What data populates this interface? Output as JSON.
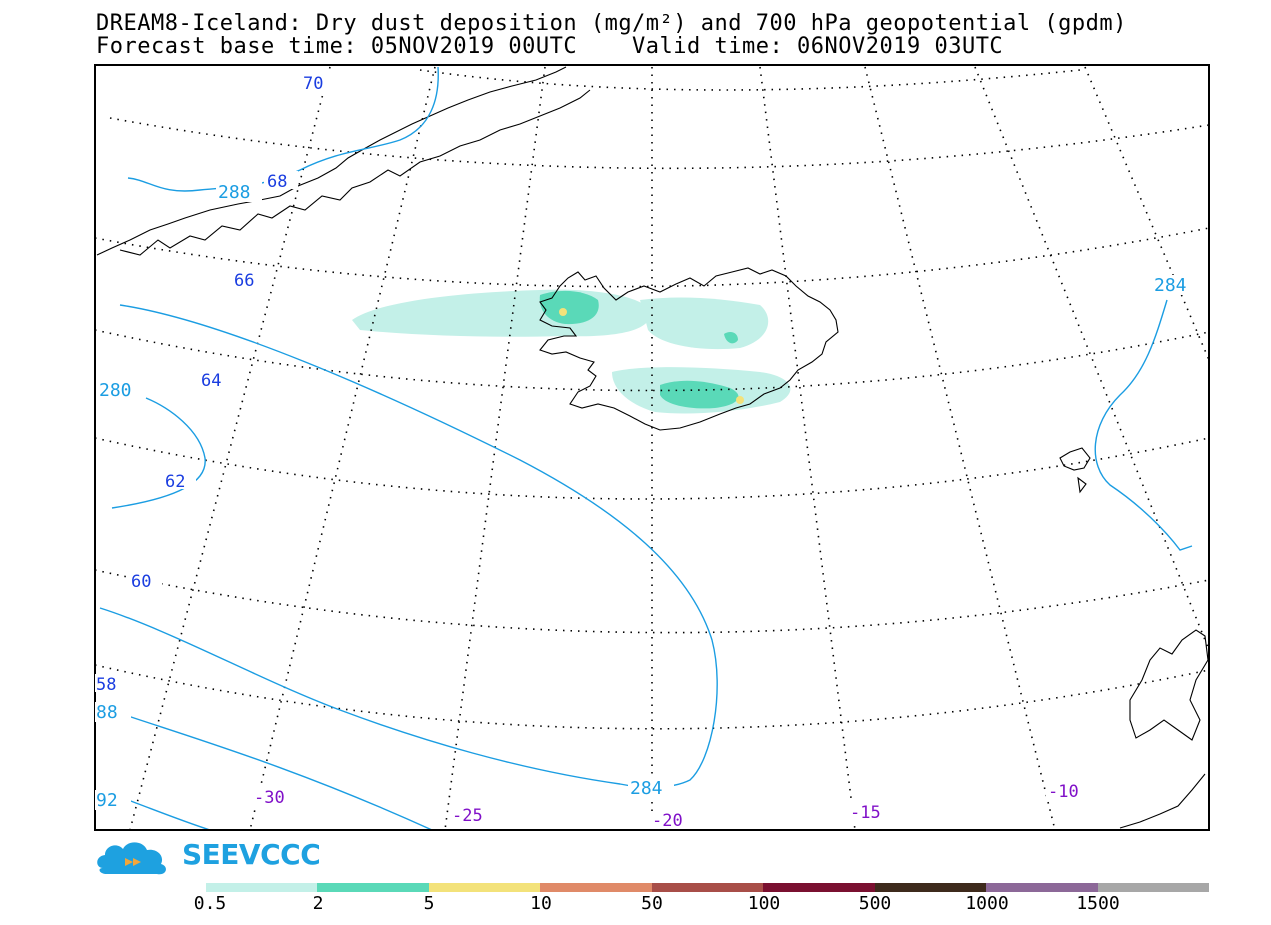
{
  "title": {
    "line1": "DREAM8-Iceland: Dry dust deposition (mg/m²) and 700 hPa geopotential (gpdm)",
    "line2": "Forecast base time: 05NOV2019 00UTC    Valid time: 06NOV2019 03UTC"
  },
  "logo_text": "SEEVCCC",
  "lat_labels": [
    "70",
    "68",
    "66",
    "64",
    "62",
    "60",
    "58"
  ],
  "lon_labels": [
    "-30",
    "-25",
    "-20",
    "-15",
    "-10"
  ],
  "contour_labels": [
    "288",
    "284",
    "280",
    "284",
    "88",
    "92"
  ],
  "colors": {
    "contour": "#1b9de2",
    "lat_label": "#1a3de0",
    "lon_label": "#8010c8",
    "dust_light": "#c3f0e8",
    "dust_mid": "#5ad9b8",
    "dust_hi": "#f3e27a"
  },
  "colorbar": {
    "labels": [
      "0.5",
      "2",
      "5",
      "10",
      "50",
      "100",
      "500",
      "1000",
      "1500"
    ],
    "colors": [
      "#c3f0e8",
      "#5ad9b8",
      "#f3e27a",
      "#e08a68",
      "#a84e48",
      "#7a1030",
      "#3e2a1c",
      "#8c6898",
      "#a7a7a7"
    ]
  }
}
